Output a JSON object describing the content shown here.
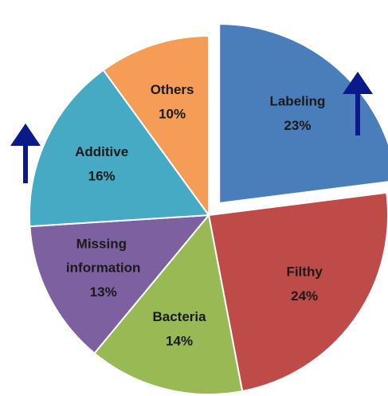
{
  "chart_data": {
    "type": "pie",
    "categories": [
      "Labeling",
      "Filthy",
      "Bacteria",
      "Missing information",
      "Additive",
      "Others"
    ],
    "values": [
      23,
      24,
      14,
      13,
      16,
      10
    ],
    "value_labels": [
      "23%",
      "24%",
      "14%",
      "13%",
      "16%",
      "10%"
    ],
    "colors": [
      "#4a7ebb",
      "#be4b48",
      "#98b954",
      "#7d60a0",
      "#46aac5",
      "#f59d56"
    ],
    "exploded": [
      0
    ]
  }
}
